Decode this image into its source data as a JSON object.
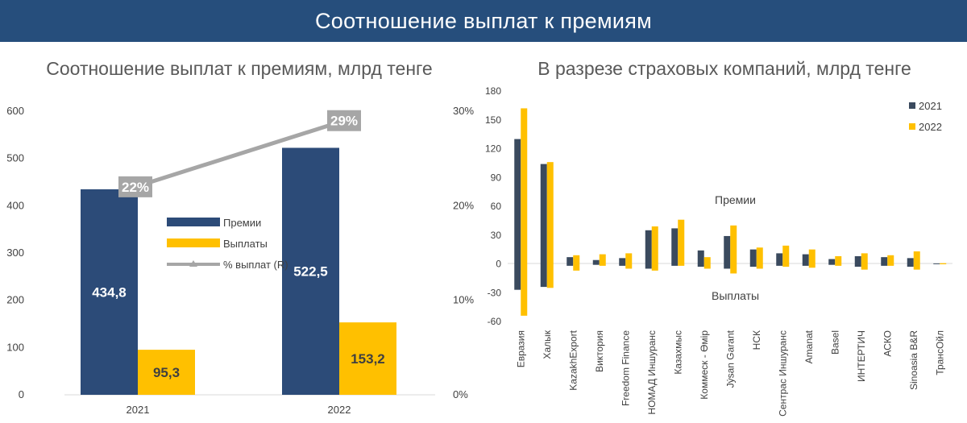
{
  "banner": {
    "title": "Соотношение выплат к премиям"
  },
  "colors": {
    "banner": "#264e7c",
    "premiums": "#2c4b78",
    "payouts": "#ffc000",
    "ratio_line": "#a6a6a6",
    "premiums_2021": "#3a4a5e",
    "premiums_2022": "#ffc000"
  },
  "chart_data": [
    {
      "type": "bar",
      "title": "Соотношение выплат к премиям, млрд тенге",
      "categories": [
        "2021",
        "2022"
      ],
      "series": [
        {
          "name": "Премии",
          "values": [
            434.8,
            522.5
          ],
          "labels": [
            "434,8",
            "522,5"
          ]
        },
        {
          "name": "Выплаты",
          "values": [
            95.3,
            153.2
          ],
          "labels": [
            "95,3",
            "153,2"
          ]
        },
        {
          "name": "% выплат (R)",
          "values": [
            22,
            29
          ],
          "labels": [
            "22%",
            "29%"
          ],
          "axis": "right",
          "type": "line"
        }
      ],
      "y_ticks": [
        "600",
        "500",
        "400",
        "300",
        "200",
        "100",
        "0"
      ],
      "ylim": [
        0,
        600
      ],
      "y2_ticks": [
        "30%",
        "20%",
        "10%",
        "0%"
      ],
      "y2lim": [
        0,
        30
      ],
      "legend": "center"
    },
    {
      "type": "bar",
      "title": "В разрезе страховых компаний, млрд тенге",
      "categories": [
        "Евразия",
        "Халык",
        "KazakhExport",
        "Виктория",
        "Freedom Finance",
        "НОМАД Иншуранс",
        "Казахмыс",
        "Коммеск - Өмір",
        "Jýsan Garant",
        "НСК",
        "Сентрас Иншуранс",
        "Amanat",
        "Basel",
        "ИНТЕРТИЧ",
        "АСКО",
        "Sinoasia B&R",
        "ТрансОйл"
      ],
      "series": [
        {
          "name": "2021",
          "premiums": [
            130,
            104,
            7,
            4,
            6,
            35,
            37,
            14,
            29,
            15,
            11,
            10,
            5,
            8,
            7,
            6,
            0.5
          ],
          "payouts": [
            -27,
            -24,
            -2,
            -1,
            -2,
            -5,
            -2,
            -3,
            -5,
            -3,
            -2,
            -2,
            -1,
            -3,
            -2,
            -3,
            -0.3
          ]
        },
        {
          "name": "2022",
          "premiums": [
            162,
            106,
            9,
            10,
            11,
            39,
            46,
            7,
            40,
            17,
            19,
            15,
            8,
            11,
            9,
            13,
            0.7
          ],
          "payouts": [
            -54,
            -25,
            -7,
            -2,
            -5,
            -7,
            -2,
            -5,
            -10,
            -5,
            -3,
            -4,
            -2,
            -6,
            -2,
            -6,
            -0.4
          ]
        }
      ],
      "y_ticks": [
        "180",
        "150",
        "120",
        "90",
        "60",
        "30",
        "0",
        "-30",
        "-60"
      ],
      "ylim": [
        -60,
        180
      ],
      "annotations": [
        "Премии",
        "Выплаты"
      ],
      "legend": "top-right"
    }
  ]
}
